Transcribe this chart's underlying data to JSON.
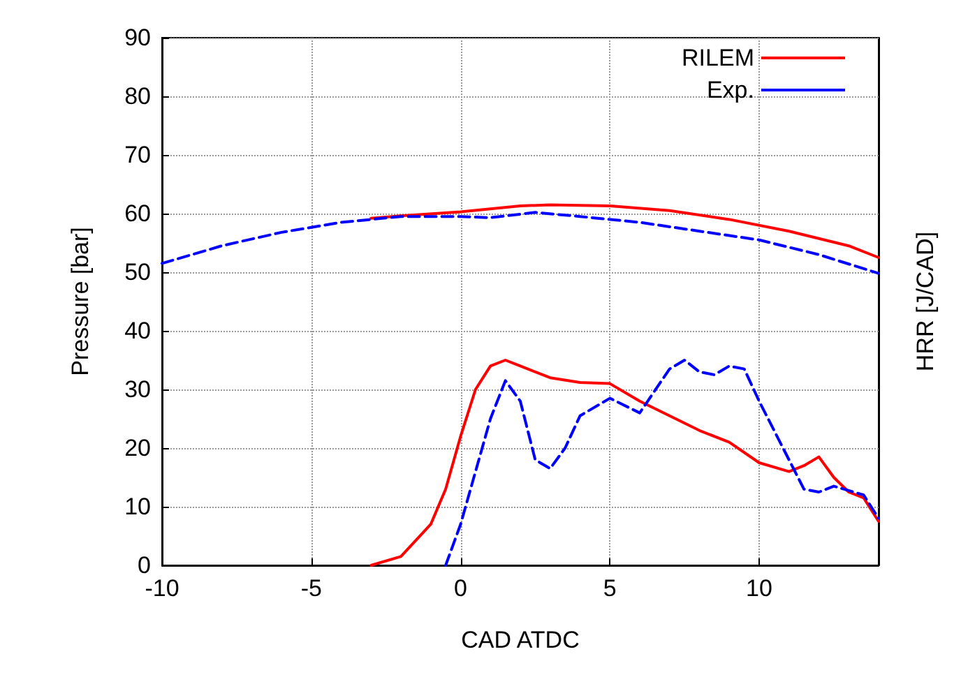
{
  "chart_data": {
    "type": "line",
    "xlabel": "CAD ATDC",
    "ylabel": "Pressure [bar]",
    "y2label": "HRR [J/CAD]",
    "xlim": [
      -10,
      14
    ],
    "xticks": [
      -10,
      -5,
      0,
      5,
      10
    ],
    "ylim": [
      0,
      90
    ],
    "yticks": [
      0,
      10,
      20,
      30,
      40,
      50,
      60,
      70,
      80,
      90
    ],
    "grid": true,
    "legend": "top right",
    "marker": "none",
    "series": [
      {
        "name": "RILEM",
        "color": "#ff0000",
        "line_style": "solid",
        "x": [
          -3,
          -2,
          0,
          2,
          3,
          5,
          7,
          9,
          11,
          13,
          14
        ],
        "values": [
          59.2,
          59.6,
          60.3,
          61.3,
          61.5,
          61.3,
          60.5,
          59,
          57,
          54.5,
          52.5
        ]
      },
      {
        "name": "Exp.",
        "color": "#0000ff",
        "line_style": "dashed",
        "x": [
          -10,
          -8,
          -6,
          -4,
          -2,
          0,
          1,
          2.5,
          4,
          6,
          8,
          10,
          12,
          14
        ],
        "values": [
          51.5,
          54.5,
          56.8,
          58.5,
          59.5,
          59.5,
          59.3,
          60.2,
          59.5,
          58.5,
          57,
          55.5,
          53,
          49.8
        ]
      },
      {
        "color": "#ff0000",
        "line_style": "solid",
        "x": [
          -3,
          -2,
          -1,
          -0.5,
          0,
          0.5,
          1,
          1.5,
          2,
          3,
          4,
          5,
          6,
          7,
          8,
          9,
          10,
          11,
          11.5,
          12,
          12.5,
          13,
          13.5,
          14
        ],
        "values": [
          0,
          1.5,
          7,
          13,
          22,
          30,
          34,
          35,
          34,
          32,
          31.2,
          31,
          28,
          25.5,
          23,
          21,
          17.5,
          16,
          17,
          18.5,
          15,
          12.5,
          11.5,
          7.5
        ]
      },
      {
        "color": "#0000ff",
        "line_style": "dashed",
        "x": [
          -0.5,
          0,
          0.5,
          1,
          1.5,
          2,
          2.5,
          3,
          3.5,
          4,
          5,
          6,
          7,
          7.5,
          8,
          8.5,
          9,
          9.5,
          10,
          11,
          11.5,
          12,
          12.5,
          13.5,
          14
        ],
        "values": [
          0,
          7,
          16,
          25,
          31.5,
          28,
          18,
          16.5,
          20,
          25.5,
          28.5,
          26,
          33.5,
          35,
          33,
          32.5,
          34,
          33.5,
          28,
          18,
          13,
          12.5,
          13.5,
          12,
          8
        ]
      }
    ]
  }
}
